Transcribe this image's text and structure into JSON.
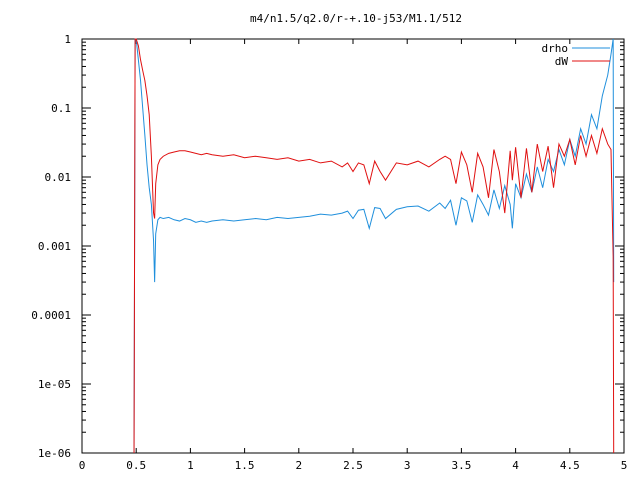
{
  "chart_data": {
    "type": "line",
    "title": "m4/n1.5/q2.0/r-+.10-j53/M1.1/512",
    "xlabel": "",
    "ylabel": "",
    "xlim": [
      0,
      5
    ],
    "ylim": [
      1e-06,
      1
    ],
    "y_scale": "log",
    "grid": false,
    "legend_position": "top-right",
    "x_ticks": [
      {
        "value": 0,
        "label": "0"
      },
      {
        "value": 0.5,
        "label": "0.5"
      },
      {
        "value": 1,
        "label": "1"
      },
      {
        "value": 1.5,
        "label": "1.5"
      },
      {
        "value": 2,
        "label": "2"
      },
      {
        "value": 2.5,
        "label": "2.5"
      },
      {
        "value": 3,
        "label": "3"
      },
      {
        "value": 3.5,
        "label": "3.5"
      },
      {
        "value": 4,
        "label": "4"
      },
      {
        "value": 4.5,
        "label": "4.5"
      },
      {
        "value": 5,
        "label": "5"
      }
    ],
    "y_ticks": [
      {
        "value": 1e-06,
        "label": "1e-06"
      },
      {
        "value": 1e-05,
        "label": "1e-05"
      },
      {
        "value": 0.0001,
        "label": "0.0001"
      },
      {
        "value": 0.001,
        "label": "0.001"
      },
      {
        "value": 0.01,
        "label": "0.01"
      },
      {
        "value": 0.1,
        "label": "0.1"
      },
      {
        "value": 1,
        "label": "1"
      }
    ],
    "series": [
      {
        "name": "drho",
        "color": "#1f8fdc",
        "x": [
          0.48,
          0.49,
          0.5,
          0.52,
          0.54,
          0.56,
          0.58,
          0.6,
          0.62,
          0.64,
          0.66,
          0.67,
          0.68,
          0.7,
          0.72,
          0.75,
          0.8,
          0.85,
          0.9,
          0.95,
          1.0,
          1.05,
          1.1,
          1.15,
          1.2,
          1.3,
          1.4,
          1.5,
          1.6,
          1.7,
          1.8,
          1.9,
          2.0,
          2.1,
          2.2,
          2.3,
          2.4,
          2.45,
          2.5,
          2.55,
          2.6,
          2.65,
          2.7,
          2.75,
          2.8,
          2.9,
          3.0,
          3.1,
          3.2,
          3.3,
          3.35,
          3.4,
          3.45,
          3.5,
          3.55,
          3.6,
          3.65,
          3.7,
          3.75,
          3.8,
          3.85,
          3.9,
          3.95,
          3.97,
          4.0,
          4.05,
          4.1,
          4.15,
          4.2,
          4.25,
          4.3,
          4.35,
          4.4,
          4.45,
          4.5,
          4.55,
          4.6,
          4.65,
          4.7,
          4.75,
          4.8,
          4.85,
          4.88,
          4.9,
          4.905
        ],
        "y": [
          1e-06,
          1,
          1,
          0.5,
          0.25,
          0.1,
          0.04,
          0.015,
          0.007,
          0.004,
          0.0012,
          0.0003,
          0.0015,
          0.0024,
          0.0026,
          0.0025,
          0.0026,
          0.0024,
          0.0023,
          0.0025,
          0.0024,
          0.0022,
          0.0023,
          0.0022,
          0.0023,
          0.0024,
          0.0023,
          0.0024,
          0.0025,
          0.0024,
          0.0026,
          0.0025,
          0.0026,
          0.0027,
          0.0029,
          0.0028,
          0.003,
          0.0032,
          0.0025,
          0.0033,
          0.0034,
          0.0018,
          0.0036,
          0.0035,
          0.0025,
          0.0034,
          0.0037,
          0.0038,
          0.0032,
          0.0042,
          0.0035,
          0.0046,
          0.002,
          0.005,
          0.0045,
          0.0022,
          0.0055,
          0.004,
          0.0028,
          0.0065,
          0.0035,
          0.0075,
          0.004,
          0.0018,
          0.008,
          0.005,
          0.011,
          0.006,
          0.014,
          0.007,
          0.018,
          0.012,
          0.025,
          0.015,
          0.035,
          0.02,
          0.05,
          0.03,
          0.08,
          0.05,
          0.15,
          0.3,
          0.6,
          1,
          0.0003
        ]
      },
      {
        "name": "dW",
        "color": "#e01010",
        "x": [
          0.48,
          0.49,
          0.5,
          0.52,
          0.54,
          0.56,
          0.58,
          0.6,
          0.62,
          0.64,
          0.66,
          0.67,
          0.68,
          0.7,
          0.72,
          0.75,
          0.8,
          0.85,
          0.9,
          0.95,
          1.0,
          1.05,
          1.1,
          1.15,
          1.2,
          1.3,
          1.4,
          1.5,
          1.6,
          1.7,
          1.8,
          1.9,
          2.0,
          2.1,
          2.2,
          2.3,
          2.4,
          2.45,
          2.5,
          2.55,
          2.6,
          2.65,
          2.7,
          2.75,
          2.8,
          2.9,
          3.0,
          3.1,
          3.2,
          3.3,
          3.35,
          3.4,
          3.45,
          3.5,
          3.55,
          3.6,
          3.65,
          3.7,
          3.75,
          3.8,
          3.85,
          3.9,
          3.95,
          3.97,
          4.0,
          4.05,
          4.1,
          4.15,
          4.2,
          4.25,
          4.3,
          4.35,
          4.4,
          4.45,
          4.5,
          4.55,
          4.6,
          4.65,
          4.7,
          4.75,
          4.8,
          4.85,
          4.88,
          4.9,
          4.905
        ],
        "y": [
          1e-06,
          1,
          1,
          0.8,
          0.5,
          0.35,
          0.25,
          0.15,
          0.08,
          0.02,
          0.003,
          0.0025,
          0.008,
          0.015,
          0.018,
          0.02,
          0.022,
          0.023,
          0.024,
          0.024,
          0.023,
          0.022,
          0.021,
          0.022,
          0.021,
          0.02,
          0.021,
          0.019,
          0.02,
          0.019,
          0.018,
          0.019,
          0.017,
          0.018,
          0.016,
          0.017,
          0.014,
          0.016,
          0.012,
          0.016,
          0.015,
          0.008,
          0.017,
          0.012,
          0.009,
          0.016,
          0.015,
          0.017,
          0.014,
          0.018,
          0.02,
          0.018,
          0.008,
          0.023,
          0.015,
          0.006,
          0.022,
          0.014,
          0.005,
          0.025,
          0.012,
          0.003,
          0.024,
          0.009,
          0.027,
          0.005,
          0.026,
          0.006,
          0.03,
          0.012,
          0.028,
          0.007,
          0.03,
          0.02,
          0.035,
          0.015,
          0.04,
          0.02,
          0.04,
          0.022,
          0.05,
          0.03,
          0.025,
          0.0007,
          1e-06
        ]
      }
    ]
  }
}
